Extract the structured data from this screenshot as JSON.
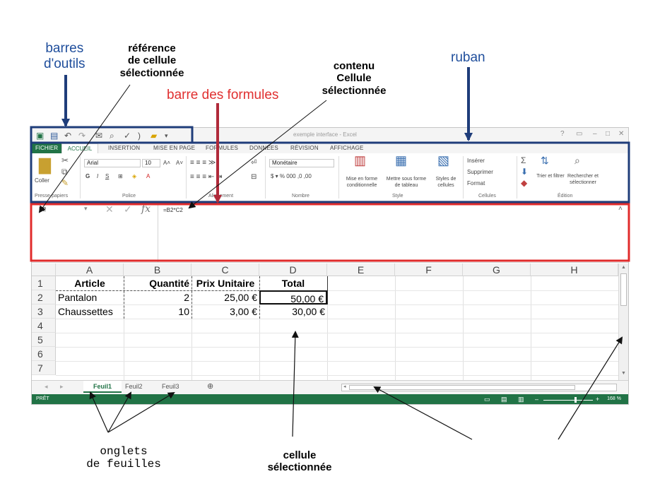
{
  "annotations": {
    "toolbars": [
      "barres",
      "d'outils"
    ],
    "cell_reference": [
      "référence",
      "de cellule",
      "sélectionnée"
    ],
    "formula_bar": "barre des formules",
    "cell_content": [
      "contenu",
      "Cellule",
      "sélectionnée"
    ],
    "ribbon": "ruban",
    "sheet_tabs": [
      "onglets",
      "de feuilles"
    ],
    "selected_cell": [
      "cellule",
      "sélectionnée"
    ]
  },
  "colors": {
    "blue_outline": "#1f3d7a",
    "red_outline": "#e02b2b",
    "excel_green": "#217346"
  },
  "window": {
    "title": "exemple interface - Excel",
    "tabs": [
      "FICHIER",
      "ACCUEIL",
      "INSERTION",
      "MISE EN PAGE",
      "FORMULES",
      "DONNÉES",
      "RÉVISION",
      "AFFICHAGE"
    ],
    "ribbon": {
      "paste": "Coller",
      "clipboard_group": "Presse-papiers",
      "font_name": "Arial",
      "font_size": "10",
      "font_group": "Police",
      "align_group": "Alignement",
      "number_format": "Monétaire",
      "number_group": "Nombre",
      "cond_format": "Mise en forme conditionnelle",
      "format_table": "Mettre sous forme de tableau",
      "cell_styles": "Styles de cellules",
      "style_group": "Style",
      "insert": "Insérer",
      "delete": "Supprimer",
      "format": "Format",
      "cells_group": "Cellules",
      "sort_filter": "Trier et filtrer",
      "find_select": "Rechercher et sélectionner",
      "edit_group": "Édition"
    },
    "formula_bar": {
      "name_box": "D2",
      "fx": "fx",
      "content": "=B2*C2"
    },
    "columns": [
      "A",
      "B",
      "C",
      "D",
      "E",
      "F",
      "G",
      "H"
    ],
    "rows": [
      "1",
      "2",
      "3",
      "4",
      "5",
      "6",
      "7"
    ],
    "cells": {
      "A1": "Article",
      "B1": "Quantité",
      "C1": "Prix Unitaire",
      "D1": "Total",
      "A2": "Pantalon",
      "B2": "2",
      "C2": "25,00 €",
      "D2": "50,00 €",
      "A3": "Chaussettes",
      "B3": "10",
      "C3": "3,00 €",
      "D3": "30,00 €"
    },
    "sheets": [
      "Feuil1",
      "Feuil2",
      "Feuil3"
    ],
    "status": "PRÊT",
    "zoom": "168 %"
  }
}
